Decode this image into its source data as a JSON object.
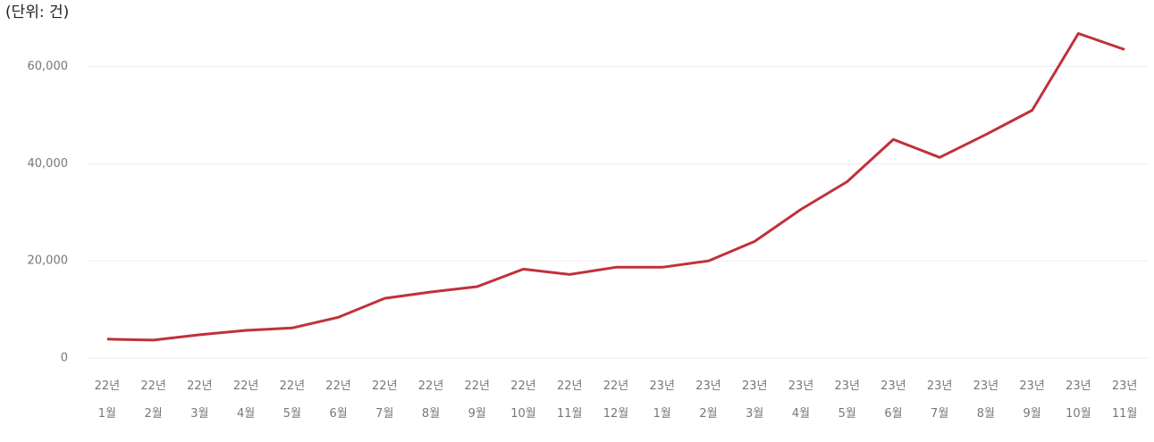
{
  "chart_data": {
    "type": "line",
    "subtitle": "(단위: 건)",
    "categories": [
      "22년 1월",
      "22년 2월",
      "22년 3월",
      "22년 4월",
      "22년 5월",
      "22년 6월",
      "22년 7월",
      "22년 8월",
      "22년 9월",
      "22년 10월",
      "22년 11월",
      "22년 12월",
      "23년 1월",
      "23년 2월",
      "23년 3월",
      "23년 4월",
      "23년 5월",
      "23년 6월",
      "23년 7월",
      "23년 8월",
      "23년 9월",
      "23년 10월",
      "23년 11월"
    ],
    "values": [
      3900,
      3700,
      4800,
      5700,
      6200,
      8400,
      12300,
      13600,
      14700,
      18300,
      17200,
      18700,
      18700,
      20000,
      24000,
      30600,
      36300,
      45000,
      41300,
      46000,
      51000,
      66800,
      63500
    ],
    "color": "#c0313a",
    "ylim": [
      0,
      68000
    ],
    "yticks": [
      0,
      {
        "value": 20000,
        "label": "20,000"
      },
      {
        "value": 40000,
        "label": "40,000"
      },
      {
        "value": 60000,
        "label": "60,000"
      }
    ],
    "grid": true
  }
}
